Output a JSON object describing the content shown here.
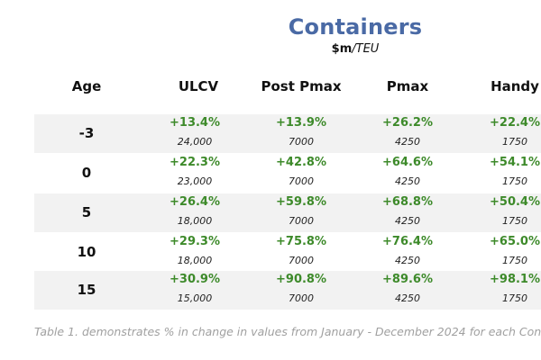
{
  "title": "Containers",
  "subtitle_unit": "$m",
  "subtitle_rest": "/TEU",
  "headers": [
    "Age",
    "ULCV",
    "Post Pmax",
    "Pmax",
    "Handy"
  ],
  "rows": [
    {
      "age": "-3",
      "cells": [
        {
          "pct": "+13.4%",
          "val": "24,000"
        },
        {
          "pct": "+13.9%",
          "val": "7000"
        },
        {
          "pct": "+26.2%",
          "val": "4250"
        },
        {
          "pct": "+22.4%",
          "val": "1750"
        }
      ]
    },
    {
      "age": "0",
      "cells": [
        {
          "pct": "+22.3%",
          "val": "23,000"
        },
        {
          "pct": "+42.8%",
          "val": "7000"
        },
        {
          "pct": "+64.6%",
          "val": "4250"
        },
        {
          "pct": "+54.1%",
          "val": "1750"
        }
      ]
    },
    {
      "age": "5",
      "cells": [
        {
          "pct": "+26.4%",
          "val": "18,000"
        },
        {
          "pct": "+59.8%",
          "val": "7000"
        },
        {
          "pct": "+68.8%",
          "val": "4250"
        },
        {
          "pct": "+50.4%",
          "val": "1750"
        }
      ]
    },
    {
      "age": "10",
      "cells": [
        {
          "pct": "+29.3%",
          "val": "18,000"
        },
        {
          "pct": "+75.8%",
          "val": "7000"
        },
        {
          "pct": "+76.4%",
          "val": "4250"
        },
        {
          "pct": "+65.0%",
          "val": "1750"
        }
      ]
    },
    {
      "age": "15",
      "cells": [
        {
          "pct": "+30.9%",
          "val": "15,000"
        },
        {
          "pct": "+90.8%",
          "val": "7000"
        },
        {
          "pct": "+89.6%",
          "val": "4250"
        },
        {
          "pct": "+98.1%",
          "val": "1750"
        }
      ]
    }
  ],
  "caption": "Table 1. demonstrates % in change in values from January - December 2024 for each Con",
  "colors": {
    "title": "#4a6aa5",
    "positive": "#3d8a2a",
    "band": "#f2f2f2",
    "caption": "#a0a0a0"
  }
}
